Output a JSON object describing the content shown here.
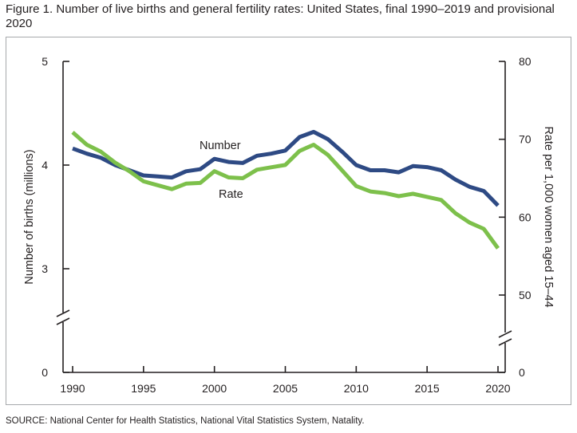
{
  "figure": {
    "title": "Figure 1. Number of live births and general fertility rates: United States, final 1990–2019 and provisional 2020",
    "source": "SOURCE: National Center for Health Statistics, National Vital Statistics System, Natality."
  },
  "chart_data": {
    "type": "line",
    "x": [
      1990,
      1991,
      1992,
      1993,
      1994,
      1995,
      1996,
      1997,
      1998,
      1999,
      2000,
      2001,
      2002,
      2003,
      2004,
      2005,
      2006,
      2007,
      2008,
      2009,
      2010,
      2011,
      2012,
      2013,
      2014,
      2015,
      2016,
      2017,
      2018,
      2019,
      2020
    ],
    "x_ticks": [
      "1990",
      "1995",
      "2000",
      "2005",
      "2010",
      "2015",
      "2020"
    ],
    "y_left": {
      "label": "Number of births (millions)",
      "ticks": [
        "5",
        "4",
        "3",
        "0"
      ],
      "range": [
        3,
        5
      ],
      "axis_break": true
    },
    "y_right": {
      "label": "Rate per 1,000 women aged 15–44",
      "ticks": [
        "80",
        "70",
        "60",
        "50",
        "0"
      ],
      "range": [
        50,
        80
      ],
      "axis_break": true
    },
    "series": [
      {
        "name": "Number",
        "axis": "left",
        "color": "#2e4a84",
        "values": [
          4.16,
          4.11,
          4.07,
          4.0,
          3.95,
          3.9,
          3.89,
          3.88,
          3.94,
          3.96,
          4.06,
          4.03,
          4.02,
          4.09,
          4.11,
          4.14,
          4.27,
          4.32,
          4.25,
          4.13,
          4.0,
          3.95,
          3.95,
          3.93,
          3.99,
          3.98,
          3.95,
          3.86,
          3.79,
          3.75,
          3.61
        ]
      },
      {
        "name": "Rate",
        "axis": "right",
        "color": "#7dc04b",
        "values": [
          70.9,
          69.3,
          68.4,
          67.0,
          65.9,
          64.6,
          64.1,
          63.6,
          64.3,
          64.4,
          65.9,
          65.1,
          65.0,
          66.1,
          66.4,
          66.7,
          68.5,
          69.3,
          68.0,
          66.0,
          64.0,
          63.3,
          63.1,
          62.7,
          63.0,
          62.6,
          62.2,
          60.5,
          59.3,
          58.5,
          56.0
        ]
      }
    ],
    "grid": false,
    "legend": "inline labels"
  }
}
